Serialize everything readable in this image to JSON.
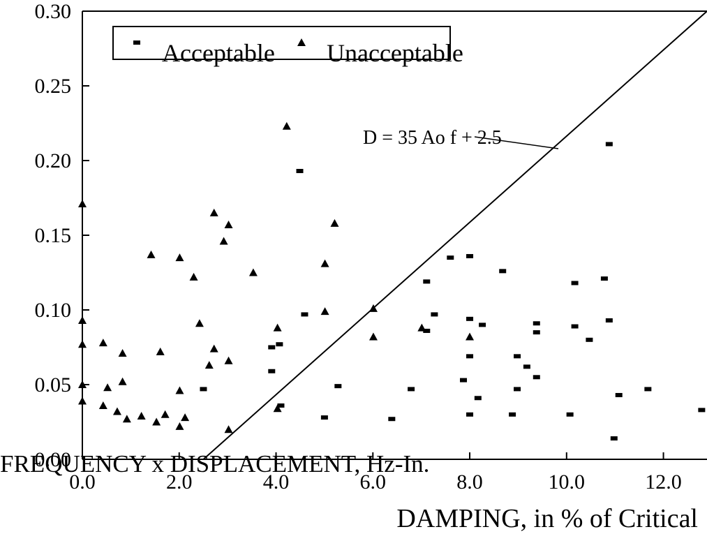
{
  "chart_data": {
    "type": "scatter",
    "y_axis_label": "FREQUENCY x DISPLACEMENT, Hz-In.",
    "x_axis_label": "DAMPING, in % of Critical",
    "xlim": [
      0,
      12.9
    ],
    "ylim": [
      0,
      0.3
    ],
    "xticks": [
      {
        "value": 0,
        "label": "0.0"
      },
      {
        "value": 2,
        "label": "2.0"
      },
      {
        "value": 4,
        "label": "4.0"
      },
      {
        "value": 6,
        "label": "6.0"
      },
      {
        "value": 8,
        "label": "8.0"
      },
      {
        "value": 10,
        "label": "10.0"
      },
      {
        "value": 12,
        "label": "12.0"
      }
    ],
    "yticks": [
      {
        "value": 0,
        "label": "0.00"
      },
      {
        "value": 0.05,
        "label": "0.05"
      },
      {
        "value": 0.1,
        "label": "0.10"
      },
      {
        "value": 0.15,
        "label": "0.15"
      },
      {
        "value": 0.2,
        "label": "0.20"
      },
      {
        "value": 0.25,
        "label": "0.25"
      },
      {
        "value": 0.3,
        "label": "0.30"
      }
    ],
    "series": [
      {
        "name": "Acceptable",
        "marker": "square",
        "color": "#000000",
        "x": [
          2.5,
          3.91,
          3.91,
          4.07,
          4.1,
          4.49,
          4.59,
          5.0,
          5.28,
          6.39,
          6.79,
          7.11,
          7.11,
          7.27,
          7.6,
          8.0,
          8.0,
          8.0,
          8.0,
          7.87,
          8.26,
          8.17,
          8.68,
          8.88,
          8.98,
          9.18,
          8.98,
          9.38,
          9.38,
          9.38,
          10.17,
          10.17,
          10.07,
          10.47,
          10.78,
          10.88,
          10.88,
          10.98,
          11.08,
          11.68,
          12.79
        ],
        "values": [
          0.047,
          0.075,
          0.059,
          0.077,
          0.036,
          0.193,
          0.097,
          0.028,
          0.049,
          0.027,
          0.047,
          0.119,
          0.086,
          0.097,
          0.135,
          0.136,
          0.094,
          0.069,
          0.03,
          0.053,
          0.09,
          0.041,
          0.126,
          0.03,
          0.069,
          0.062,
          0.047,
          0.091,
          0.085,
          0.055,
          0.118,
          0.089,
          0.03,
          0.08,
          0.121,
          0.211,
          0.093,
          0.014,
          0.043,
          0.047,
          0.033
        ]
      },
      {
        "name": "Unacceptable",
        "marker": "triangle",
        "color": "#000000",
        "x": [
          0.0,
          0.0,
          0.0,
          0.0,
          0.0,
          0.43,
          0.43,
          0.52,
          0.72,
          0.83,
          0.83,
          0.92,
          1.22,
          1.42,
          1.53,
          1.61,
          1.71,
          2.01,
          2.01,
          2.01,
          2.12,
          2.3,
          2.42,
          2.62,
          2.72,
          2.72,
          2.92,
          3.02,
          3.02,
          3.02,
          3.53,
          4.03,
          4.03,
          4.22,
          5.01,
          5.01,
          5.21,
          6.01,
          6.01,
          7.01,
          8.0
        ],
        "values": [
          0.171,
          0.093,
          0.077,
          0.05,
          0.039,
          0.078,
          0.036,
          0.048,
          0.032,
          0.071,
          0.052,
          0.027,
          0.029,
          0.137,
          0.025,
          0.072,
          0.03,
          0.135,
          0.046,
          0.022,
          0.028,
          0.122,
          0.091,
          0.063,
          0.165,
          0.074,
          0.146,
          0.157,
          0.066,
          0.02,
          0.125,
          0.088,
          0.034,
          0.223,
          0.131,
          0.099,
          0.158,
          0.101,
          0.082,
          0.088,
          0.082
        ]
      }
    ],
    "fit_line": {
      "label": "D = 35 Ao f + 2.5",
      "x": [
        2.5,
        12.9
      ],
      "values": [
        0,
        0.3
      ],
      "color": "#000000"
    }
  }
}
